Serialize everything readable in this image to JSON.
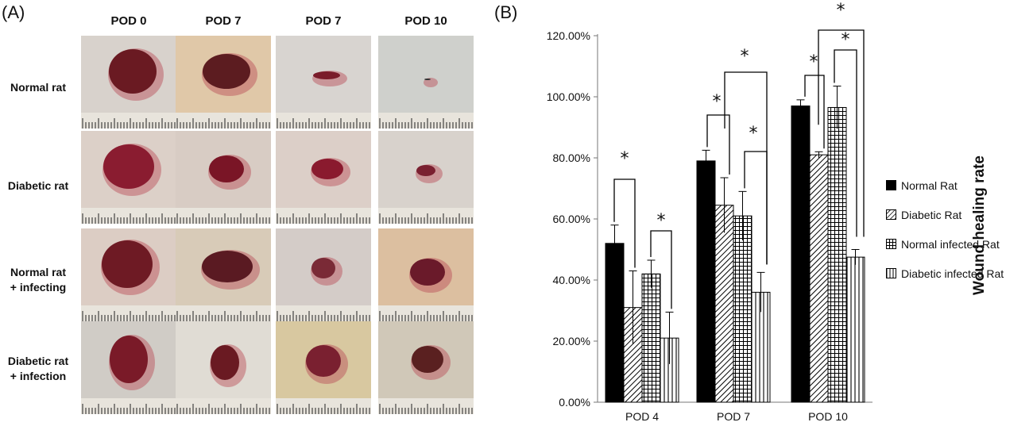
{
  "panel_a": {
    "label": "(A)",
    "columns": [
      "POD 0",
      "POD 7",
      "POD 7",
      "POD 10"
    ],
    "rows": [
      {
        "label_line1": "Normal rat",
        "label_line2": ""
      },
      {
        "label_line1": "Diabetic rat",
        "label_line2": ""
      },
      {
        "label_line1": "Normal rat",
        "label_line2": "+ infecting"
      },
      {
        "label_line1": "Diabetic rat",
        "label_line2": "+ infection"
      }
    ]
  },
  "panel_b": {
    "label": "(B)"
  },
  "chart_data": {
    "type": "bar",
    "categories": [
      "POD 4",
      "POD 7",
      "POD 10"
    ],
    "ylabel": "Wound healing rate",
    "ylim": [
      0,
      1.2
    ],
    "yticks": [
      "0.00%",
      "20.00%",
      "40.00%",
      "60.00%",
      "80.00%",
      "100.00%",
      "120.00%"
    ],
    "series": [
      {
        "name": "Normal Rat",
        "values": [
          0.52,
          0.79,
          0.97
        ],
        "errors": [
          0.06,
          0.035,
          0.02
        ],
        "pattern": "solid"
      },
      {
        "name": "Diabetic Rat",
        "values": [
          0.31,
          0.645,
          0.81
        ],
        "errors": [
          0.12,
          0.09,
          0.01
        ],
        "pattern": "diagonal"
      },
      {
        "name": "Normal infected Rat",
        "values": [
          0.42,
          0.61,
          0.965
        ],
        "errors": [
          0.045,
          0.08,
          0.07
        ],
        "pattern": "grid"
      },
      {
        "name": "Diabetic infected Rat",
        "values": [
          0.21,
          0.36,
          0.475
        ],
        "errors": [
          0.085,
          0.065,
          0.025
        ],
        "pattern": "vertical"
      }
    ],
    "significance_marker": "*",
    "legend_position": "right"
  }
}
